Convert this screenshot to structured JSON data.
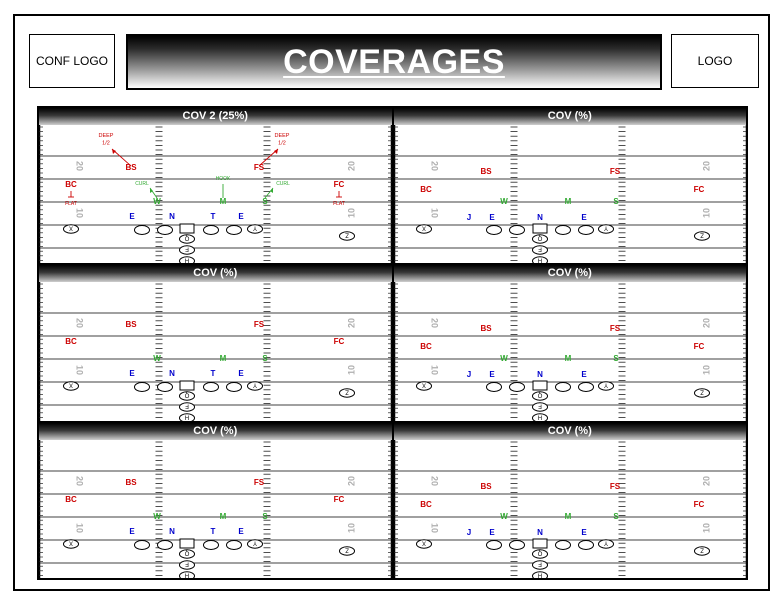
{
  "header": {
    "conf_logo_label": "CONF LOGO",
    "logo_label": "LOGO",
    "title": "COVERAGES"
  },
  "colors": {
    "defense_secondary": "#cc0000",
    "defense_linebacker": "#33aa33",
    "offense_label": "#0000cc",
    "yard_numbers": "#b0b0b0",
    "banner_dark": "#000000"
  },
  "field_labels": {
    "yard_20": "20",
    "yard_10": "10"
  },
  "panels": [
    {
      "title": "COV 2 (25%)",
      "annotations": true,
      "defense": [
        {
          "id": "bs",
          "label": "BS",
          "cls": "sec"
        },
        {
          "id": "fs",
          "label": "FS",
          "cls": "sec"
        },
        {
          "id": "bc",
          "label": "BC",
          "cls": "sec"
        },
        {
          "id": "fc",
          "label": "FC",
          "cls": "sec"
        },
        {
          "id": "w",
          "label": "W",
          "cls": "lb"
        },
        {
          "id": "m",
          "label": "M",
          "cls": "lb"
        },
        {
          "id": "s",
          "label": "S",
          "cls": "lb"
        }
      ],
      "offense_labels": [
        {
          "id": "e1",
          "label": "E"
        },
        {
          "id": "n",
          "label": "N"
        },
        {
          "id": "t",
          "label": "T"
        },
        {
          "id": "e2",
          "label": "E"
        }
      ],
      "assignments": [
        {
          "id": "deep-left",
          "label": "DEEP 1/2",
          "cls": "sec"
        },
        {
          "id": "deep-right",
          "label": "DEEP 1/2",
          "cls": "sec"
        },
        {
          "id": "flat-left",
          "label": "FLAT",
          "cls": "sec"
        },
        {
          "id": "flat-right",
          "label": "FLAT",
          "cls": "sec"
        },
        {
          "id": "curl-left",
          "label": "CURL",
          "cls": "lb"
        },
        {
          "id": "hook",
          "label": "HOOK",
          "cls": "lb"
        },
        {
          "id": "curl-right",
          "label": "CURL",
          "cls": "lb"
        }
      ]
    },
    {
      "title": "COV (%)",
      "annotations": false,
      "defense": [
        {
          "id": "bs",
          "label": "BS",
          "cls": "sec"
        },
        {
          "id": "fs",
          "label": "FS",
          "cls": "sec"
        },
        {
          "id": "bc",
          "label": "BC",
          "cls": "sec"
        },
        {
          "id": "fc",
          "label": "FC",
          "cls": "sec"
        },
        {
          "id": "w",
          "label": "W",
          "cls": "lb"
        },
        {
          "id": "m",
          "label": "M",
          "cls": "lb"
        },
        {
          "id": "s",
          "label": "S",
          "cls": "lb"
        }
      ],
      "offense_labels": [
        {
          "id": "j",
          "label": "J"
        },
        {
          "id": "e1",
          "label": "E"
        },
        {
          "id": "n",
          "label": "N"
        },
        {
          "id": "e2",
          "label": "E"
        }
      ]
    },
    {
      "title": "COV (%)",
      "annotations": false,
      "defense": [
        {
          "id": "bs",
          "label": "BS",
          "cls": "sec"
        },
        {
          "id": "fs",
          "label": "FS",
          "cls": "sec"
        },
        {
          "id": "bc",
          "label": "BC",
          "cls": "sec"
        },
        {
          "id": "fc",
          "label": "FC",
          "cls": "sec"
        },
        {
          "id": "w",
          "label": "W",
          "cls": "lb"
        },
        {
          "id": "m",
          "label": "M",
          "cls": "lb"
        },
        {
          "id": "s",
          "label": "S",
          "cls": "lb"
        }
      ],
      "offense_labels": [
        {
          "id": "e1",
          "label": "E"
        },
        {
          "id": "n",
          "label": "N"
        },
        {
          "id": "t",
          "label": "T"
        },
        {
          "id": "e2",
          "label": "E"
        }
      ]
    },
    {
      "title": "COV (%)",
      "annotations": false,
      "defense": [
        {
          "id": "bs",
          "label": "BS",
          "cls": "sec"
        },
        {
          "id": "fs",
          "label": "FS",
          "cls": "sec"
        },
        {
          "id": "bc",
          "label": "BC",
          "cls": "sec"
        },
        {
          "id": "fc",
          "label": "FC",
          "cls": "sec"
        },
        {
          "id": "w",
          "label": "W",
          "cls": "lb"
        },
        {
          "id": "m",
          "label": "M",
          "cls": "lb"
        },
        {
          "id": "s",
          "label": "S",
          "cls": "lb"
        }
      ],
      "offense_labels": [
        {
          "id": "j",
          "label": "J"
        },
        {
          "id": "e1",
          "label": "E"
        },
        {
          "id": "n",
          "label": "N"
        },
        {
          "id": "e2",
          "label": "E"
        }
      ]
    },
    {
      "title": "COV (%)",
      "annotations": false,
      "defense": [
        {
          "id": "bs",
          "label": "BS",
          "cls": "sec"
        },
        {
          "id": "fs",
          "label": "FS",
          "cls": "sec"
        },
        {
          "id": "bc",
          "label": "BC",
          "cls": "sec"
        },
        {
          "id": "fc",
          "label": "FC",
          "cls": "sec"
        },
        {
          "id": "w",
          "label": "W",
          "cls": "lb"
        },
        {
          "id": "m",
          "label": "M",
          "cls": "lb"
        },
        {
          "id": "s",
          "label": "S",
          "cls": "lb"
        }
      ],
      "offense_labels": [
        {
          "id": "e1",
          "label": "E"
        },
        {
          "id": "n",
          "label": "N"
        },
        {
          "id": "t",
          "label": "T"
        },
        {
          "id": "e2",
          "label": "E"
        }
      ]
    },
    {
      "title": "COV (%)",
      "annotations": false,
      "defense": [
        {
          "id": "bs",
          "label": "BS",
          "cls": "sec"
        },
        {
          "id": "fs",
          "label": "FS",
          "cls": "sec"
        },
        {
          "id": "bc",
          "label": "BC",
          "cls": "sec"
        },
        {
          "id": "fc",
          "label": "FC",
          "cls": "sec"
        },
        {
          "id": "w",
          "label": "W",
          "cls": "lb"
        },
        {
          "id": "m",
          "label": "M",
          "cls": "lb"
        },
        {
          "id": "s",
          "label": "S",
          "cls": "lb"
        }
      ],
      "offense_labels": [
        {
          "id": "j",
          "label": "J"
        },
        {
          "id": "e1",
          "label": "E"
        },
        {
          "id": "n",
          "label": "N"
        },
        {
          "id": "e2",
          "label": "E"
        }
      ]
    }
  ],
  "offense_players": [
    {
      "id": "x",
      "label": "X"
    },
    {
      "id": "y",
      "label": "Y"
    },
    {
      "id": "z",
      "label": "Z"
    },
    {
      "id": "q",
      "label": "Q"
    },
    {
      "id": "f",
      "label": "F"
    },
    {
      "id": "h",
      "label": "H"
    }
  ]
}
